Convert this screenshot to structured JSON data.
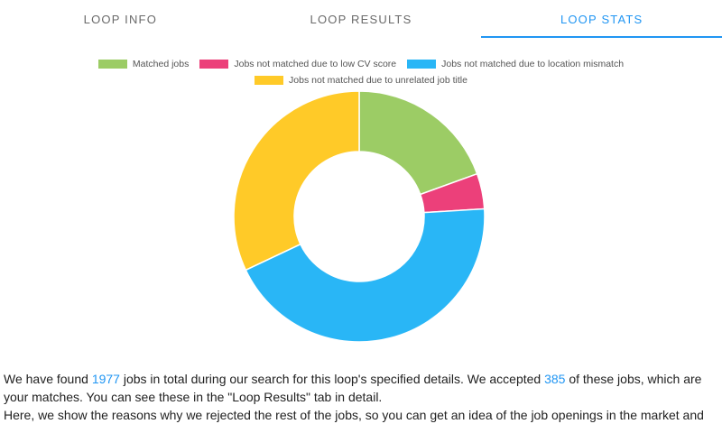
{
  "tabs": [
    {
      "label": "LOOP INFO",
      "active": false
    },
    {
      "label": "LOOP RESULTS",
      "active": false
    },
    {
      "label": "LOOP STATS",
      "active": true
    }
  ],
  "chart_data": {
    "type": "doughnut",
    "series": [
      {
        "name": "Matched jobs",
        "value": 385,
        "color": "#9ccc65"
      },
      {
        "name": "Jobs not matched due to low CV score",
        "value": 90,
        "color": "#ec407a"
      },
      {
        "name": "Jobs not matched due to location mismatch",
        "value": 869,
        "color": "#29b6f6"
      },
      {
        "name": "Jobs not matched due to unrelated job title",
        "value": 633,
        "color": "#ffca28"
      }
    ]
  },
  "summary": {
    "p1_a": "We have found ",
    "total_jobs": "1977",
    "p1_b": " jobs in total during our search for this loop's specified details. We accepted ",
    "accepted_jobs": "385",
    "p1_c": " of these jobs, which are your matches. You can see these in the \"Loop Results\" tab in detail.",
    "p2": "Here, we show the reasons why we rejected the rest of the jobs, so you can get an idea of the job openings in the market and"
  }
}
